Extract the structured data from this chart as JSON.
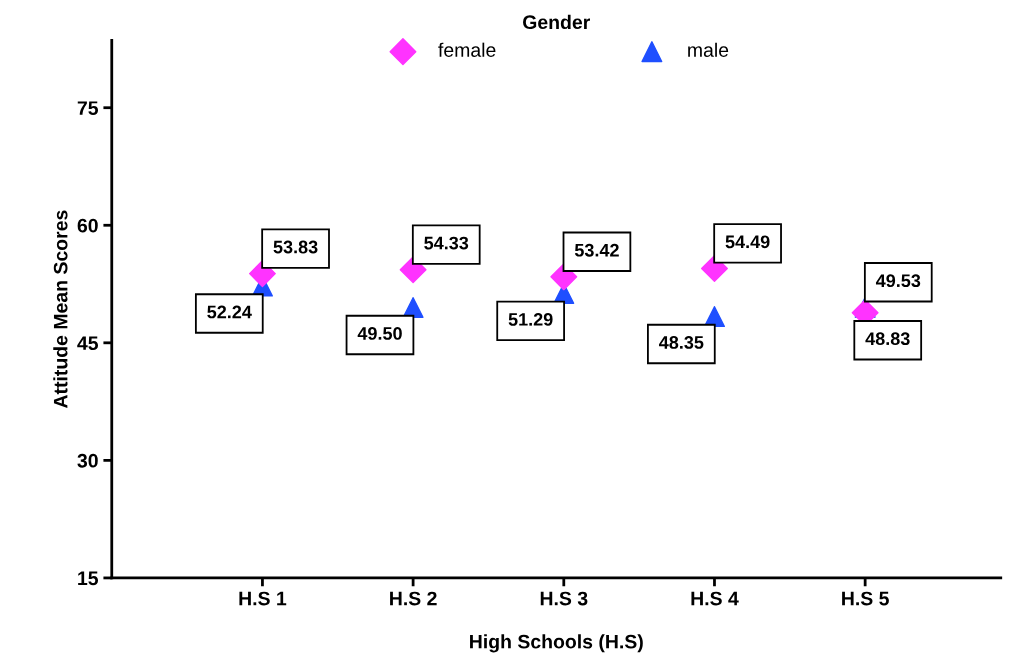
{
  "chart_data": {
    "type": "scatter",
    "xlabel": "High Schools (H.S)",
    "ylabel": "Attitude Mean Scores",
    "legend_title": "Gender",
    "legend": "top",
    "categories": [
      "H.S 1",
      "H.S 2",
      "H.S 3",
      "H.S 4",
      "H.S 5"
    ],
    "ylim": [
      15,
      83.6
    ],
    "yticks": [
      15,
      30,
      45,
      60,
      75
    ],
    "grid": false,
    "series": [
      {
        "name": "female",
        "color": "#ff33ff",
        "marker": "diamond",
        "values": [
          53.83,
          54.33,
          53.42,
          54.49,
          48.83
        ],
        "value_labels": [
          "53.83",
          "54.33",
          "53.42",
          "54.49",
          "48.83"
        ]
      },
      {
        "name": "male",
        "color": "#1f4fff",
        "marker": "triangle",
        "values": [
          52.24,
          49.5,
          51.29,
          48.35,
          49.53
        ],
        "value_labels": [
          "52.24",
          "49.50",
          "51.29",
          "48.35",
          "49.53"
        ]
      }
    ]
  }
}
